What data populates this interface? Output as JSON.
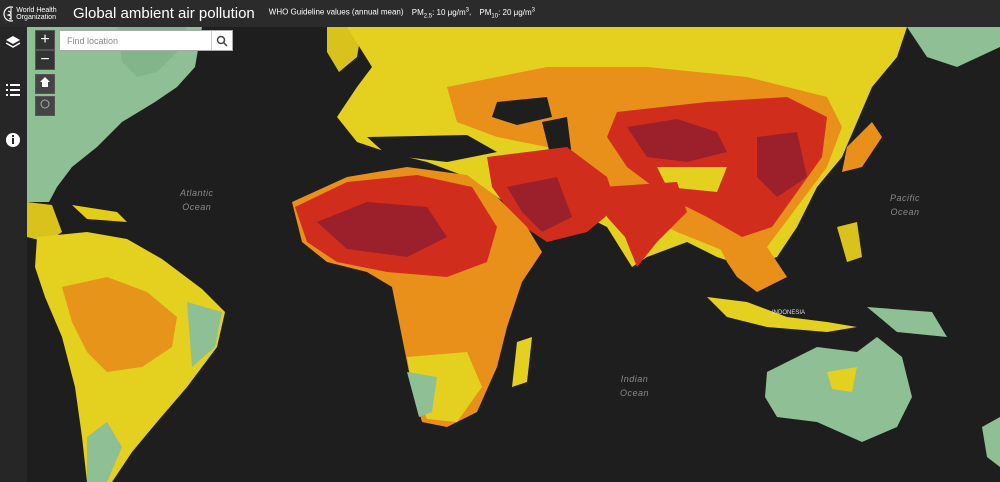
{
  "header": {
    "org": "World Health Organization",
    "title": "Global ambient air pollution",
    "guideline": {
      "label": "WHO Guideline values (annual mean)",
      "pm25": {
        "name": "PM",
        "sub": "2.5",
        "value": ": 10 μg/m",
        "sup": "3"
      },
      "pm10": {
        "name": "PM",
        "sub": "10",
        "value": ": 20 μg/m",
        "sup": "3"
      }
    }
  },
  "search": {
    "placeholder": "Find location"
  },
  "map": {
    "labels": {
      "atlantic": [
        "Atlantic",
        "Ocean"
      ],
      "pacific": [
        "Pacific",
        "Ocean"
      ],
      "indian": [
        "Indian",
        "Ocean"
      ],
      "indonesia": "INDONESIA"
    }
  }
}
